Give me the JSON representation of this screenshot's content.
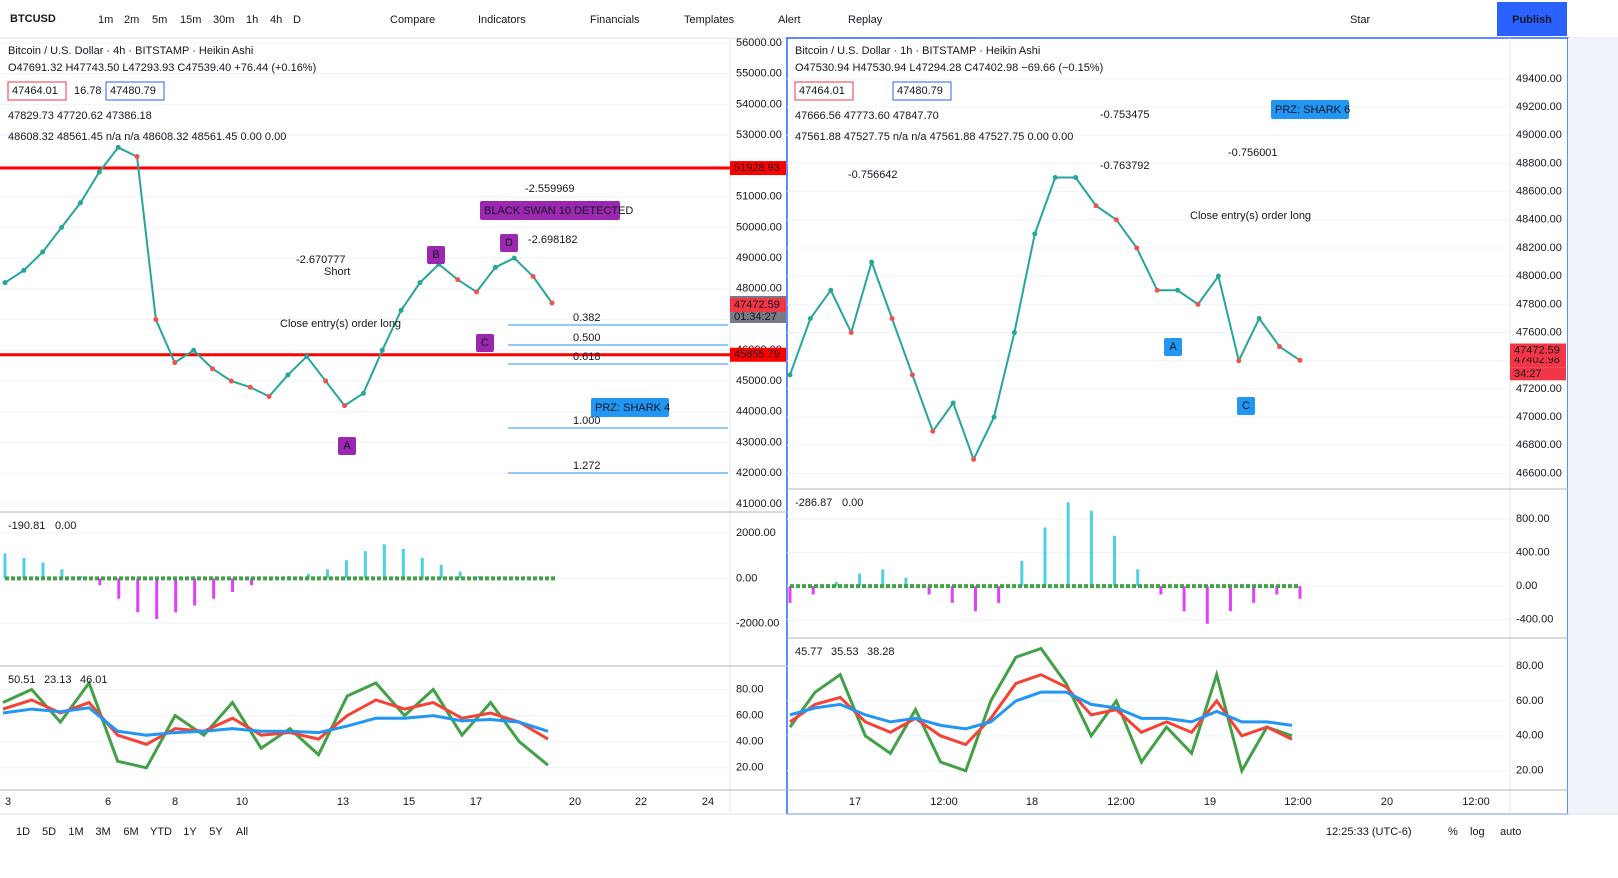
{
  "toolbar": {
    "symbol": "BTCUSD",
    "intervals": [
      "1m",
      "2m",
      "5m",
      "15m",
      "30m",
      "1h",
      "4h",
      "D"
    ],
    "buttons": [
      "Compare",
      "Indicators",
      "Financials",
      "Templates",
      "Alert",
      "Replay"
    ],
    "star": "Star",
    "publish": "Publish"
  },
  "left_chart": {
    "title": "Bitcoin / U.S. Dollar · 4h · BITSTAMP · Heikin Ashi",
    "ohlc": "O47691.32 H47743.50 L47293.93 C47539.40 +76.44 (+0.16%)",
    "bid": "47464.01",
    "spread": "16.78",
    "ask": "47480.79",
    "ma1": "47829.73 47720.62 47386.18",
    "ma2": "48608.32 48561.45 n/a n/a 48608.32 48561.45 0.00 0.00",
    "ylim": [
      40740,
      56160
    ],
    "yticks": [
      {
        "value": 56000,
        "label": "56000.00"
      },
      {
        "value": 55000,
        "label": "55000.00"
      },
      {
        "value": 54000,
        "label": "54000.00"
      },
      {
        "value": 53000,
        "label": "53000.00"
      },
      {
        "value": 52000,
        "label": "52000.00"
      },
      {
        "value": 51000,
        "label": "51000.00"
      },
      {
        "value": 50000,
        "label": "50000.00"
      },
      {
        "value": 49000,
        "label": "49000.00"
      },
      {
        "value": 48000,
        "label": "48000.00"
      },
      {
        "value": 47000,
        "label": "47000.00"
      },
      {
        "value": 46000,
        "label": "46000.00"
      },
      {
        "value": 45000,
        "label": "45000.00"
      },
      {
        "value": 44000,
        "label": "44000.00"
      },
      {
        "value": 43000,
        "label": "43000.00"
      },
      {
        "value": 42000,
        "label": "42000.00"
      },
      {
        "value": 41000,
        "label": "41000.00"
      }
    ],
    "levels": [
      {
        "value": 51928.93,
        "label": "51928.93"
      },
      {
        "value": 45855.79,
        "label": "45855.79"
      }
    ],
    "last_price": {
      "value": 47539.4,
      "label": "47539.40"
    },
    "countdown": "01:34:27",
    "bid_tag": {
      "value": 47472.59,
      "label": "47472.59"
    },
    "price": [
      48200,
      48600,
      49200,
      50000,
      50800,
      51800,
      52600,
      52300,
      47000,
      45600,
      46000,
      45400,
      45000,
      44800,
      44500,
      45200,
      45800,
      45000,
      44200,
      44600,
      46000,
      47300,
      48200,
      48800,
      48300,
      47900,
      48700,
      49000,
      48400,
      47539.4
    ],
    "fib": [
      "0.382",
      "0.500",
      "0.618",
      "1.000",
      "1.272"
    ],
    "notes": [
      "BLACK SWAN 10 DETECTED",
      "PRZ: SHARK 4",
      "-2.670777",
      "Short",
      "Close entry(s) order long",
      "-2.559969",
      "-2.698182"
    ],
    "points": [
      "A",
      "B",
      "C",
      "D"
    ],
    "osc_label": [
      "-190.81",
      "0.00"
    ],
    "osc_ylim": [
      -3870,
      2930
    ],
    "osc_ticks": [
      {
        "value": 2000,
        "label": "2000.00"
      },
      {
        "value": 0,
        "label": "0.00"
      },
      {
        "value": -2000,
        "label": "-2000.00"
      }
    ],
    "osc": [
      1100,
      900,
      700,
      400,
      100,
      -300,
      -900,
      -1500,
      -1800,
      -1500,
      -1200,
      -900,
      -600,
      -300,
      -100,
      100,
      200,
      400,
      800,
      1200,
      1500,
      1300,
      900,
      600,
      300,
      100,
      0,
      0,
      0,
      0
    ],
    "rsi_label": [
      "50.51",
      "23.13",
      "46.01"
    ],
    "rsi_ylim": [
      3,
      98
    ],
    "rsi_ticks": [
      {
        "value": 80,
        "label": "80.00"
      },
      {
        "value": 60,
        "label": "60.00"
      },
      {
        "value": 40,
        "label": "40.00"
      },
      {
        "value": 20,
        "label": "20.00"
      }
    ],
    "rsi": [
      {
        "color": "#43a047",
        "values": [
          70,
          80,
          55,
          85,
          25,
          20,
          60,
          45,
          70,
          35,
          50,
          30,
          75,
          85,
          60,
          80,
          45,
          70,
          40,
          22
        ]
      },
      {
        "color": "#f44336",
        "values": [
          65,
          72,
          62,
          70,
          45,
          38,
          50,
          48,
          58,
          45,
          47,
          42,
          60,
          72,
          65,
          70,
          58,
          62,
          55,
          42
        ]
      },
      {
        "color": "#2196f3",
        "values": [
          62,
          65,
          63,
          66,
          48,
          45,
          47,
          48,
          50,
          48,
          48,
          47,
          52,
          58,
          58,
          60,
          56,
          57,
          55,
          48
        ]
      }
    ],
    "xticks": [
      "3",
      "6",
      "8",
      "10",
      "13",
      "15",
      "17",
      "20",
      "22",
      "24"
    ]
  },
  "right_chart": {
    "title": "Bitcoin / U.S. Dollar · 1h · BITSTAMP · Heikin Ashi",
    "ohlc": "O47530.94 H47530.94 L47294.28 C47402.98 −69.66 (−0.15%)",
    "bid": "47464.01",
    "ask": "47480.79",
    "ma1": "47666.56 47773.60 47847.70",
    "ma2": "47561.88 47527.75 n/a n/a 47561.88 47527.75 0.00 0.00",
    "ylim": [
      46490,
      49690
    ],
    "yticks": [
      {
        "value": 49400,
        "label": "49400.00"
      },
      {
        "value": 49200,
        "label": "49200.00"
      },
      {
        "value": 49000,
        "label": "49000.00"
      },
      {
        "value": 48800,
        "label": "48800.00"
      },
      {
        "value": 48600,
        "label": "48600.00"
      },
      {
        "value": 48400,
        "label": "48400.00"
      },
      {
        "value": 48200,
        "label": "48200.00"
      },
      {
        "value": 48000,
        "label": "48000.00"
      },
      {
        "value": 47800,
        "label": "47800.00"
      },
      {
        "value": 47600,
        "label": "47600.00"
      },
      {
        "value": 47400,
        "label": "47400.00"
      },
      {
        "value": 47200,
        "label": "47200.00"
      },
      {
        "value": 47000,
        "label": "47000.00"
      },
      {
        "value": 46800,
        "label": "46800.00"
      },
      {
        "value": 46600,
        "label": "46600.00"
      }
    ],
    "bid_tag": {
      "value": 47472.59,
      "label": "47472.59"
    },
    "last_price": {
      "value": 47402.98,
      "label": "47402.98"
    },
    "countdown": "34:27",
    "price": [
      47300,
      47700,
      47900,
      47600,
      48100,
      47700,
      47300,
      46900,
      47100,
      46700,
      47000,
      47600,
      48300,
      48700,
      48700,
      48500,
      48400,
      48200,
      47900,
      47900,
      47800,
      48000,
      47400,
      47700,
      47500,
      47402.98
    ],
    "notes": [
      "PRZ: SHARK 6",
      "-0.753475",
      "-0.763792",
      "-0.756642",
      "-0.756001",
      "Close entry(s) order long"
    ],
    "points": [
      "A",
      "C"
    ],
    "osc_label": [
      "-286.87",
      "0.00"
    ],
    "osc_ylim": [
      -620,
      1160
    ],
    "osc_ticks": [
      {
        "value": 800,
        "label": "800.00"
      },
      {
        "value": 400,
        "label": "400.00"
      },
      {
        "value": 0,
        "label": "0.00"
      },
      {
        "value": -400,
        "label": "-400.00"
      }
    ],
    "osc": [
      -200,
      -100,
      50,
      150,
      200,
      100,
      -100,
      -200,
      -300,
      -200,
      300,
      700,
      1000,
      900,
      600,
      200,
      -100,
      -300,
      -450,
      -300,
      -200,
      -100,
      -150
    ],
    "rsi_label": [
      "45.77",
      "35.53",
      "38.28"
    ],
    "rsi_ylim": [
      9,
      96
    ],
    "rsi_ticks": [
      {
        "value": 80,
        "label": "80.00"
      },
      {
        "value": 60,
        "label": "60.00"
      },
      {
        "value": 40,
        "label": "40.00"
      },
      {
        "value": 20,
        "label": "20.00"
      }
    ],
    "rsi": [
      {
        "color": "#43a047",
        "values": [
          45,
          65,
          75,
          40,
          30,
          55,
          25,
          20,
          60,
          85,
          90,
          70,
          40,
          60,
          25,
          45,
          30,
          75,
          20,
          45,
          40
        ]
      },
      {
        "color": "#f44336",
        "values": [
          48,
          58,
          62,
          48,
          42,
          50,
          40,
          35,
          50,
          70,
          75,
          68,
          52,
          55,
          42,
          48,
          42,
          60,
          40,
          45,
          38
        ]
      },
      {
        "color": "#2196f3",
        "values": [
          52,
          56,
          58,
          52,
          48,
          50,
          46,
          44,
          48,
          60,
          65,
          65,
          58,
          56,
          50,
          50,
          48,
          54,
          48,
          48,
          46
        ]
      }
    ],
    "xticks": [
      "17",
      "12:00",
      "18",
      "12:00",
      "19",
      "12:00",
      "20",
      "12:00"
    ]
  },
  "bottom_bar": {
    "ranges": [
      "1D",
      "5D",
      "1M",
      "3M",
      "6M",
      "YTD",
      "1Y",
      "5Y",
      "All"
    ],
    "time": "12:25:33 (UTC-6)",
    "pct": "%",
    "log": "log",
    "auto": "auto"
  }
}
